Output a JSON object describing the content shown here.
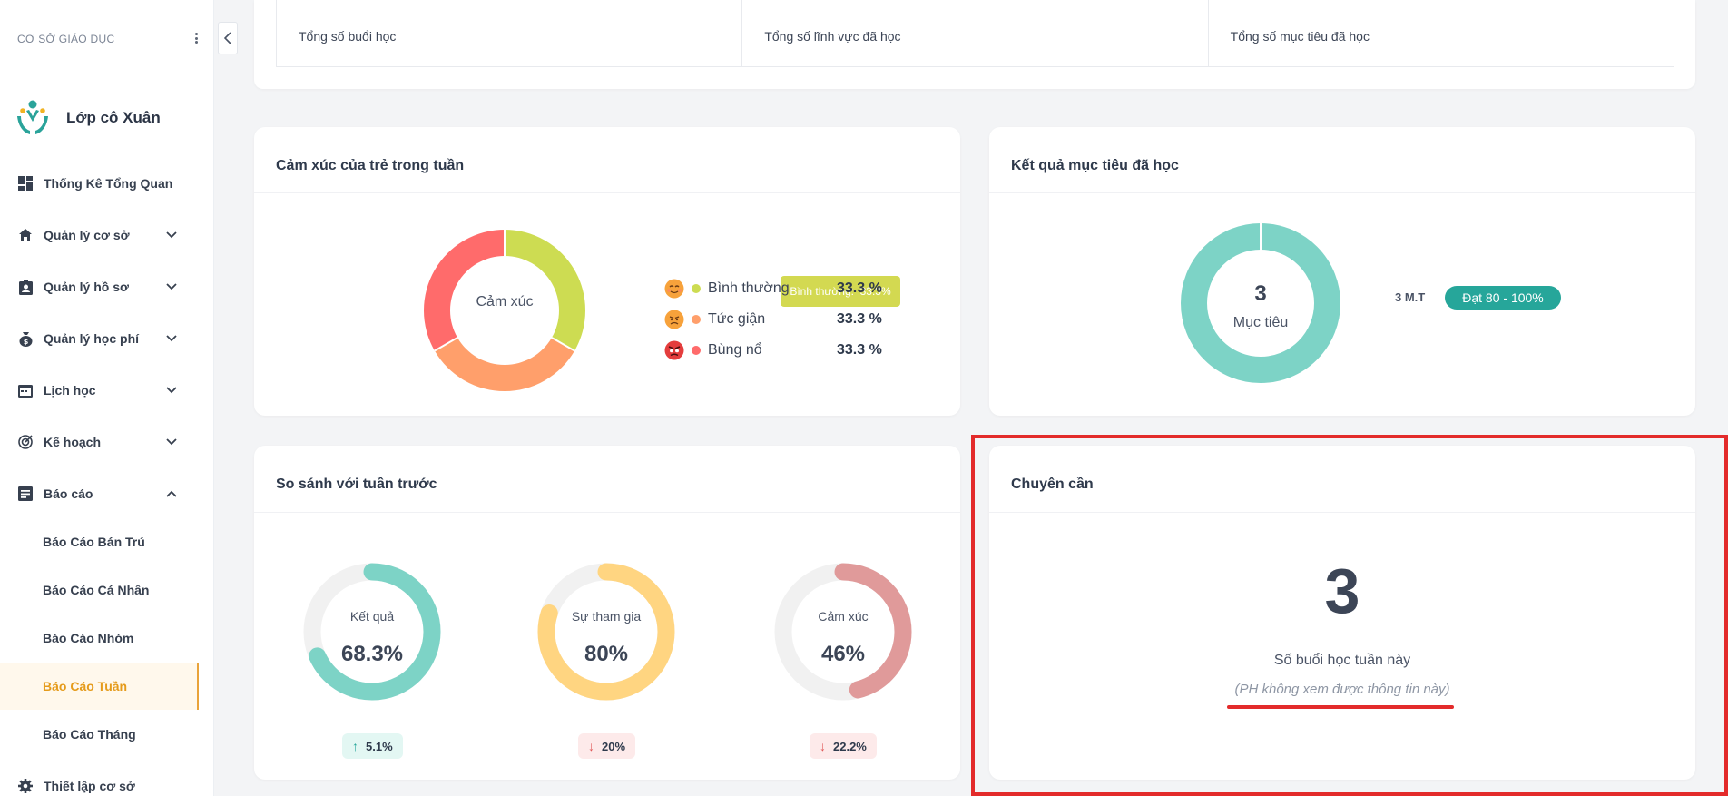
{
  "sidebar": {
    "header": "CƠ SỞ GIÁO DỤC",
    "brand_name": "Lớp cô Xuân",
    "items": [
      {
        "label": "Thống Kê Tổng Quan"
      },
      {
        "label": "Quản lý cơ sở"
      },
      {
        "label": "Quản lý hồ sơ"
      },
      {
        "label": "Quản lý học phí"
      },
      {
        "label": "Lịch học"
      },
      {
        "label": "Kế hoạch"
      },
      {
        "label": "Báo cáo"
      },
      {
        "label": "Thiết lập cơ sở"
      }
    ],
    "report_sub_items": [
      {
        "label": "Báo Cáo Bán Trú"
      },
      {
        "label": "Báo Cáo Cá Nhân"
      },
      {
        "label": "Báo Cáo Nhóm"
      },
      {
        "label": "Báo Cáo Tuần"
      },
      {
        "label": "Báo Cáo Tháng"
      }
    ],
    "active_sub_item": "Báo Cáo Tuần"
  },
  "stats": {
    "cells": [
      "Tổng số buổi học",
      "Tổng số lĩnh vực đã học",
      "Tổng số mục tiêu đã học"
    ]
  },
  "emotion_card": {
    "title": "Cảm xúc của trẻ trong tuần",
    "center_label": "Cảm xúc",
    "tooltip": "Bình thường:  33.3%",
    "legend": [
      {
        "name": "Bình thường",
        "value": "33.3 %",
        "color": "#cddc52"
      },
      {
        "name": "Tức giận",
        "value": "33.3 %",
        "color": "#ff9f6b"
      },
      {
        "name": "Bùng nổ",
        "value": "33.3 %",
        "color": "#ff6b6b"
      }
    ]
  },
  "goal_card": {
    "title": "Kết quả mục tiêu đã học",
    "center_number": "3",
    "center_label": "Mục tiêu",
    "count_label": "3 M.T",
    "badge": "Đạt 80 - 100%",
    "color": "#7dd3c6"
  },
  "compare_card": {
    "title": "So sánh với tuần trước",
    "rings": [
      {
        "label": "Kết quả",
        "value": "68.3%",
        "fraction": 0.683,
        "color": "#7dd3c6",
        "change": "5.1%",
        "direction": "up"
      },
      {
        "label": "Sự tham gia",
        "value": "80%",
        "fraction": 0.8,
        "color": "#ffd581",
        "change": "20%",
        "direction": "down"
      },
      {
        "label": "Cảm xúc",
        "value": "46%",
        "fraction": 0.46,
        "color": "#e09a9a",
        "change": "22.2%",
        "direction": "down"
      }
    ]
  },
  "attendance_card": {
    "title": "Chuyên cần",
    "number": "3",
    "label": "Số buổi học tuần này",
    "note": "(PH không xem được thông tin này)"
  },
  "colors": {
    "accent": "#e59b1b",
    "highlight": "#e32b2b",
    "teal": "#26a69a"
  }
}
